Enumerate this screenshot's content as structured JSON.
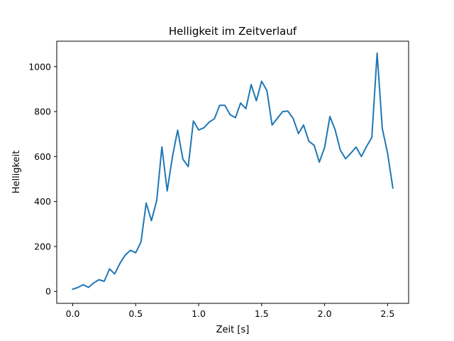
{
  "chart_data": {
    "type": "line",
    "title": "Helligkeit im Zeitverlauf",
    "xlabel": "Zeit [s]",
    "ylabel": "Helligkeit",
    "xlim": [
      -0.127,
      2.667
    ],
    "ylim": [
      -53,
      1113
    ],
    "xticks": [
      0.0,
      0.5,
      1.0,
      1.5,
      2.0,
      2.5
    ],
    "xtick_labels": [
      "0.0",
      "0.5",
      "1.0",
      "1.5",
      "2.0",
      "2.5"
    ],
    "yticks": [
      0,
      200,
      400,
      600,
      800,
      1000
    ],
    "ytick_labels": [
      "0",
      "200",
      "400",
      "600",
      "800",
      "1000"
    ],
    "grid": false,
    "colors": {
      "line": "#1f77b4"
    },
    "series": [
      {
        "x": [
          0.0,
          0.042,
          0.083,
          0.125,
          0.167,
          0.208,
          0.25,
          0.292,
          0.333,
          0.375,
          0.417,
          0.458,
          0.5,
          0.542,
          0.583,
          0.625,
          0.667,
          0.708,
          0.75,
          0.792,
          0.833,
          0.875,
          0.917,
          0.958,
          1.0,
          1.042,
          1.083,
          1.125,
          1.167,
          1.208,
          1.25,
          1.292,
          1.333,
          1.375,
          1.417,
          1.458,
          1.5,
          1.542,
          1.583,
          1.625,
          1.667,
          1.708,
          1.75,
          1.792,
          1.833,
          1.875,
          1.917,
          1.958,
          2.0,
          2.042,
          2.083,
          2.125,
          2.167,
          2.208,
          2.25,
          2.292,
          2.333,
          2.375,
          2.417,
          2.458,
          2.5,
          2.542
        ],
        "y": [
          10,
          18,
          30,
          18,
          38,
          52,
          45,
          100,
          78,
          125,
          162,
          183,
          172,
          220,
          393,
          315,
          405,
          643,
          447,
          600,
          717,
          588,
          555,
          758,
          718,
          728,
          753,
          768,
          828,
          828,
          786,
          773,
          838,
          813,
          920,
          848,
          935,
          893,
          740,
          770,
          800,
          802,
          770,
          702,
          740,
          668,
          650,
          575,
          640,
          778,
          720,
          628,
          590,
          615,
          642,
          600,
          645,
          685,
          1060,
          725,
          615,
          460
        ]
      }
    ]
  }
}
